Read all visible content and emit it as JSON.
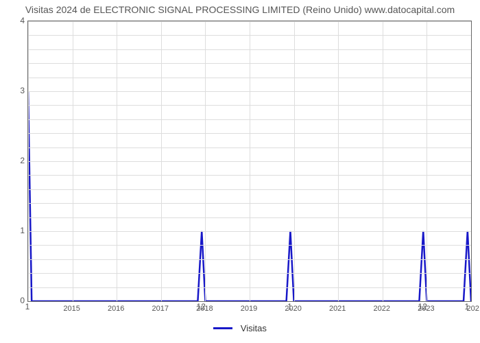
{
  "chart": {
    "type": "line",
    "title": "Visitas 2024 de ELECTRONIC SIGNAL PROCESSING LIMITED (Reino Unido) www.datocapital.com",
    "title_color": "#555555",
    "title_fontsize": 14,
    "background_color": "#ffffff",
    "plot_border_color": "#666666",
    "grid_color": "#dddddd",
    "line_color": "#1818c8",
    "line_width": 2.5,
    "y": {
      "min": 0,
      "max": 4,
      "ticks": [
        0,
        1,
        2,
        3,
        4
      ],
      "minor_step": 0.2,
      "tick_fontsize": 12,
      "tick_color": "#555555"
    },
    "x": {
      "min": 2014.0,
      "max": 2024.0,
      "ticks": [
        2015,
        2016,
        2017,
        2018,
        2019,
        2020,
        2021,
        2022,
        2023
      ],
      "right_cut_label": "202",
      "tick_fontsize": 11,
      "tick_color": "#555555"
    },
    "series": {
      "label": "Visitas",
      "points": [
        [
          2014.0,
          3.0
        ],
        [
          2014.08,
          0.0
        ],
        [
          2017.83,
          0.0
        ],
        [
          2017.92,
          1.0
        ],
        [
          2018.0,
          0.0
        ],
        [
          2019.83,
          0.0
        ],
        [
          2019.92,
          1.0
        ],
        [
          2020.0,
          0.0
        ],
        [
          2022.83,
          0.0
        ],
        [
          2022.92,
          1.0
        ],
        [
          2023.0,
          0.0
        ],
        [
          2023.83,
          0.0
        ],
        [
          2023.92,
          1.0
        ],
        [
          2024.0,
          0.0
        ]
      ]
    },
    "peak_labels": [
      {
        "x": 2014.0,
        "text": "1"
      },
      {
        "x": 2017.92,
        "text": "12"
      },
      {
        "x": 2019.92,
        "text": "1"
      },
      {
        "x": 2022.92,
        "text": "12"
      },
      {
        "x": 2023.92,
        "text": "1"
      }
    ],
    "legend": {
      "swatch_color": "#1818c8",
      "text_color": "#333333",
      "fontsize": 13
    }
  }
}
